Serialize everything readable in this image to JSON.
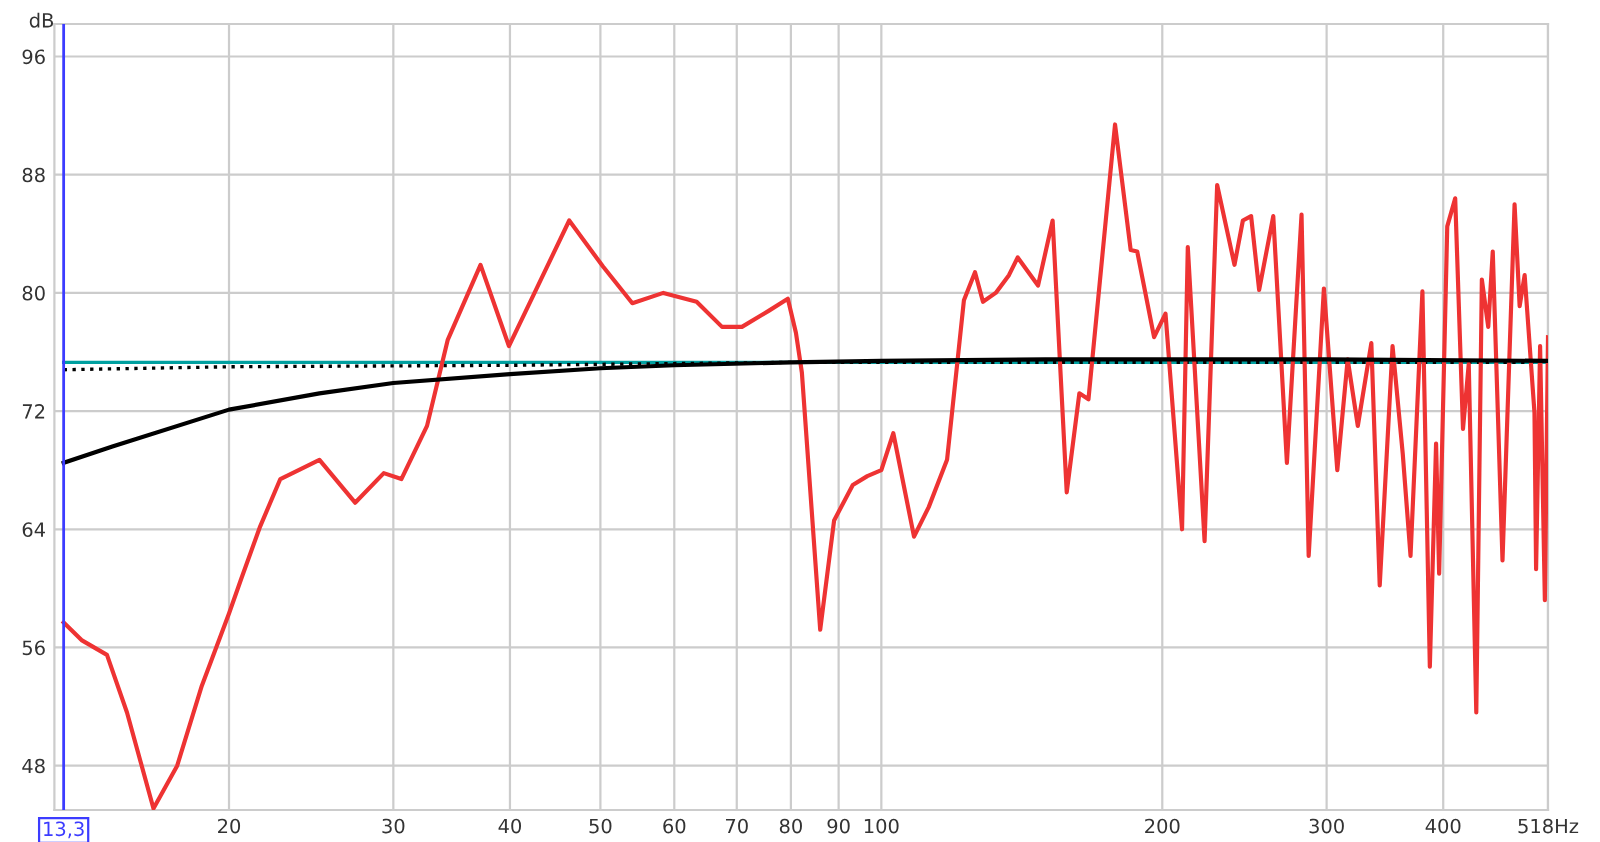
{
  "chart_data": {
    "type": "line",
    "ylabel": "dB",
    "log": "x",
    "grid": true,
    "xlim": [
      13.0,
      518
    ],
    "ylim": [
      45,
      98.2
    ],
    "xticks": [
      20,
      30,
      40,
      50,
      60,
      70,
      80,
      90,
      100,
      200,
      300,
      400,
      {
        "value": 518,
        "label": "518Hz"
      }
    ],
    "yticks": [
      48,
      56,
      64,
      72,
      80,
      88,
      96
    ],
    "ref_lines": [
      {
        "axis": "x",
        "value": 13.3,
        "label": "13,3",
        "color": "#3c3cff"
      }
    ],
    "series": [
      {
        "color": "#00a0a0",
        "x": [
          13.3,
          518
        ],
        "values": [
          75.3,
          75.3
        ]
      },
      {
        "color": "#000000",
        "line_style": "dotted",
        "x": [
          13.3,
          20,
          40,
          80,
          518
        ],
        "values": [
          74.8,
          75.0,
          75.1,
          75.3,
          75.3
        ]
      },
      {
        "color": "#ee3333",
        "x": [
          13.3,
          13.9,
          14.8,
          15.55,
          16.6,
          17.6,
          18.7,
          20,
          20.6,
          21.6,
          22.7,
          25,
          27.3,
          29.3,
          30.6,
          32.6,
          34.3,
          37.2,
          39.9,
          42.5,
          46.3,
          50.3,
          54.1,
          58.4,
          63.4,
          67.5,
          70.9,
          75.8,
          79.4,
          81,
          82.2,
          86,
          89,
          93.2,
          96.6,
          100,
          103,
          108.4,
          112.4,
          117.6,
          122.6,
          126,
          128.5,
          132.6,
          137,
          140,
          147.2,
          152.6,
          158,
          163,
          166.7,
          178,
          185,
          188,
          196,
          201.6,
          210,
          213,
          222,
          229,
          239,
          244,
          249,
          254,
          263,
          272,
          282,
          287,
          298,
          308,
          316,
          324,
          335,
          342,
          353,
          362,
          369,
          380,
          387,
          393,
          396,
          404,
          412,
          420,
          426,
          434,
          440,
          447,
          452,
          463,
          477,
          483,
          489,
          501,
          503,
          508,
          514,
          518
        ],
        "values": [
          57.7,
          56.5,
          55.5,
          51.6,
          45.1,
          48,
          53.4,
          58.3,
          60.6,
          64.2,
          67.4,
          68.7,
          65.8,
          67.8,
          67.4,
          71,
          76.8,
          81.9,
          76.4,
          80,
          84.9,
          81.8,
          79.3,
          80,
          79.4,
          77.7,
          77.7,
          78.8,
          79.6,
          77.3,
          74.6,
          57.2,
          64.6,
          67,
          67.6,
          68,
          70.5,
          63.5,
          65.5,
          68.7,
          79.5,
          81.4,
          79.4,
          80,
          81.2,
          82.4,
          80.5,
          84.9,
          66.5,
          73.2,
          72.8,
          91.4,
          82.9,
          82.8,
          77,
          78.6,
          64,
          83.1,
          63.2,
          87.3,
          81.9,
          84.9,
          85.2,
          80.2,
          85.2,
          68.5,
          85.3,
          62.2,
          80.3,
          68,
          75.5,
          71,
          76.6,
          60.2,
          76.4,
          69.1,
          62.2,
          80.1,
          54.7,
          69.8,
          61,
          84.5,
          86.4,
          70.8,
          75.2,
          51.6,
          80.9,
          77.7,
          82.8,
          61.9,
          86,
          79.1,
          81.2,
          71.9,
          61.3,
          76.4,
          59.2,
          77
        ]
      },
      {
        "color": "#000000",
        "x": [
          13.3,
          15,
          20,
          25,
          30,
          40,
          50,
          60,
          80,
          100,
          150,
          300,
          518
        ],
        "values": [
          68.5,
          69.6,
          72.1,
          73.2,
          73.9,
          74.5,
          74.9,
          75.1,
          75.3,
          75.4,
          75.5,
          75.5,
          75.4
        ]
      }
    ]
  }
}
